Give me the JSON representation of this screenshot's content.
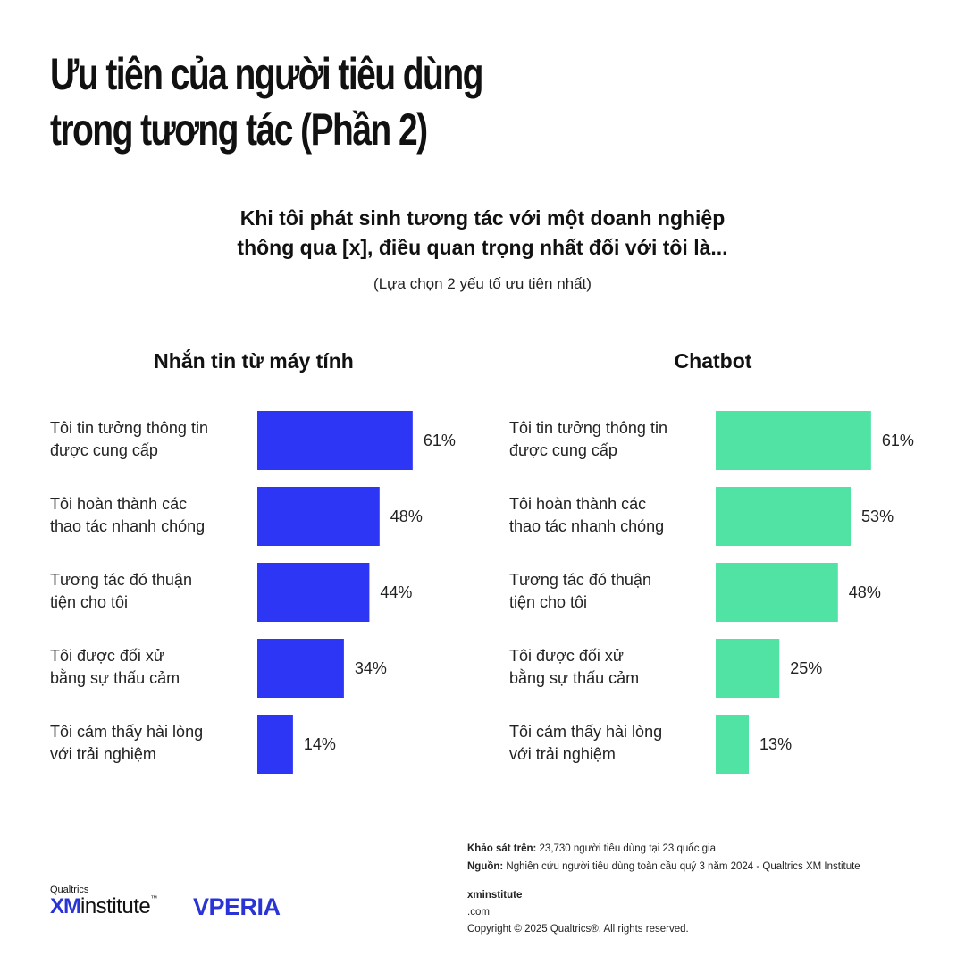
{
  "title": {
    "line1": "Ưu tiên của người tiêu dùng",
    "line2": "trong tương tác (Phần 2)"
  },
  "question": {
    "line1": "Khi tôi phát sinh tương tác với một doanh nghiệp",
    "line2": "thông qua [x], điều quan trọng nhất đối với tôi là...",
    "note": "(Lựa chọn 2 yếu tố ưu tiên nhất)"
  },
  "colors": {
    "desktop_bar": "#2d36f5",
    "chatbot_bar": "#50e3a4"
  },
  "chart_data": [
    {
      "type": "bar",
      "orientation": "horizontal",
      "title": "Nhắn tin từ máy tính",
      "categories": [
        [
          "Tôi tin tưởng thông tin",
          "được cung cấp"
        ],
        [
          "Tôi hoàn thành các",
          "thao tác nhanh chóng"
        ],
        [
          "Tương tác đó thuận",
          "tiện cho tôi"
        ],
        [
          "Tôi được đối xử",
          "bằng sự thấu cảm"
        ],
        [
          "Tôi cảm thấy hài lòng",
          "với trải nghiệm"
        ]
      ],
      "values": [
        61,
        48,
        44,
        34,
        14
      ],
      "value_labels": [
        "61%",
        "48%",
        "44%",
        "34%",
        "14%"
      ],
      "xlim": [
        0,
        100
      ],
      "grid": false
    },
    {
      "type": "bar",
      "orientation": "horizontal",
      "title": "Chatbot",
      "categories": [
        [
          "Tôi tin tưởng thông tin",
          "được cung cấp"
        ],
        [
          "Tôi hoàn thành các",
          "thao tác nhanh chóng"
        ],
        [
          "Tương tác đó thuận",
          "tiện cho tôi"
        ],
        [
          "Tôi được đối xử",
          "bằng sự thấu cảm"
        ],
        [
          "Tôi cảm thấy hài lòng",
          "với trải nghiệm"
        ]
      ],
      "values": [
        61,
        53,
        48,
        25,
        13
      ],
      "value_labels": [
        "61%",
        "53%",
        "48%",
        "25%",
        "13%"
      ],
      "xlim": [
        0,
        100
      ],
      "grid": false
    }
  ],
  "footer": {
    "survey_label": "Khảo sát trên:",
    "survey_text": " 23,730 người tiêu dùng tại 23 quốc gia",
    "source_label": "Nguồn:",
    "source_text": " Nghiên cứu người tiêu dùng toàn cầu quý 3 năm 2024 - Qualtrics XM Institute",
    "site_bold": "xminstitute",
    "site_rest": ".com",
    "copyright": "Copyright © 2025 Qualtrics®. All rights reserved."
  },
  "logos": {
    "qualtrics": "Qualtrics",
    "xm": "XM",
    "institute": "institute",
    "tm": "™",
    "vperia": "VPERIA"
  }
}
